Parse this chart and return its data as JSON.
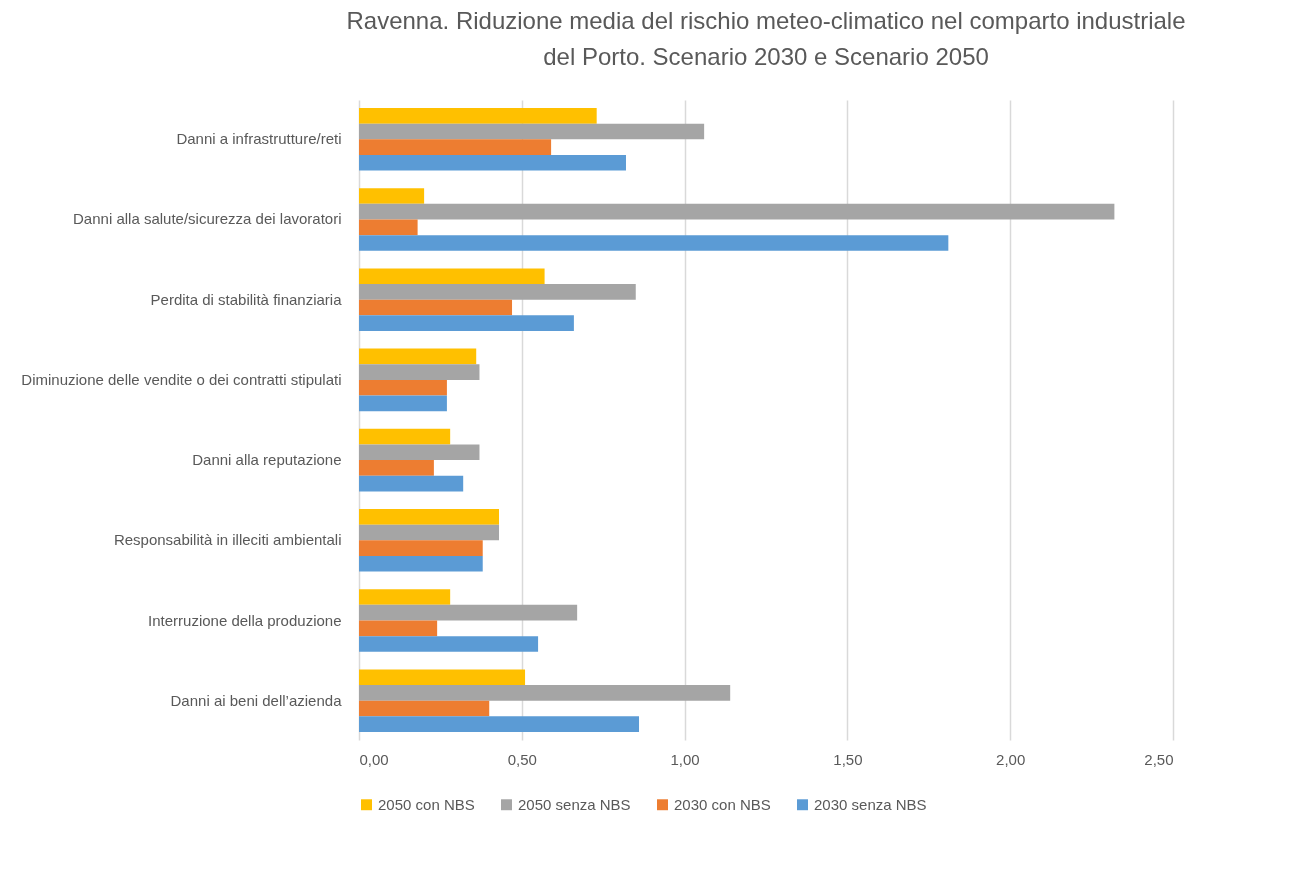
{
  "chart_data": {
    "type": "bar",
    "orientation": "horizontal",
    "title": "Ravenna. Riduzione media del rischio meteo-climatico nel comparto industriale\ndel Porto. Scenario 2030 e Scenario 2050",
    "categories": [
      "Danni a infrastrutture/reti",
      "Danni alla salute/sicurezza dei lavoratori",
      "Perdita di stabilità finanziaria",
      "Diminuzione delle vendite o dei contratti stipulati",
      "Danni alla reputazione",
      "Responsabilità in illeciti ambientali",
      "Interruzione della produzione",
      "Danni ai beni dell’azienda"
    ],
    "series": [
      {
        "name": "2050 con NBS",
        "color": "#ffc000",
        "values": [
          0.73,
          0.2,
          0.57,
          0.36,
          0.28,
          0.43,
          0.28,
          0.51
        ]
      },
      {
        "name": "2050 senza NBS",
        "color": "#a5a5a5",
        "values": [
          1.06,
          2.32,
          0.85,
          0.37,
          0.37,
          0.43,
          0.67,
          1.14
        ]
      },
      {
        "name": "2030 con NBS",
        "color": "#ed7d31",
        "values": [
          0.59,
          0.18,
          0.47,
          0.27,
          0.23,
          0.38,
          0.24,
          0.4
        ]
      },
      {
        "name": "2030 senza NBS",
        "color": "#5b9bd5",
        "values": [
          0.82,
          1.81,
          0.66,
          0.27,
          0.32,
          0.38,
          0.55,
          0.86
        ]
      }
    ],
    "xlim": [
      0,
      2.5
    ],
    "xticks": [
      {
        "value": 0,
        "label": "0,00"
      },
      {
        "value": 0.5,
        "label": "0,50"
      },
      {
        "value": 1,
        "label": "1,00"
      },
      {
        "value": 1.5,
        "label": "1,50"
      },
      {
        "value": 2,
        "label": "2,00"
      },
      {
        "value": 2.5,
        "label": "2,50"
      }
    ],
    "grid": "x",
    "legend": "bottom"
  }
}
